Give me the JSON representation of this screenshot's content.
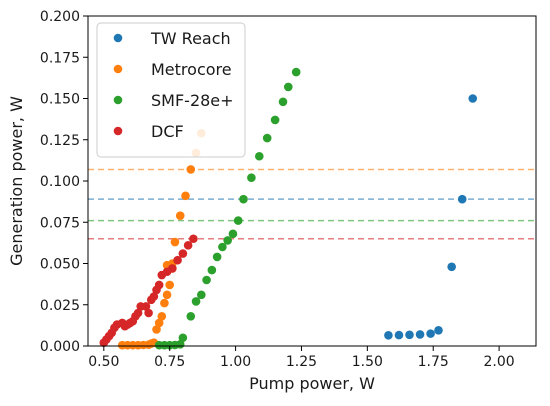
{
  "chart_data": {
    "type": "scatter",
    "xlabel": "Pump power, W",
    "ylabel": "Generation power, W",
    "xlim": [
      0.44,
      2.14
    ],
    "ylim": [
      0.0,
      0.2
    ],
    "x_ticks": [
      "0.50",
      "0.75",
      "1.00",
      "1.25",
      "1.50",
      "1.75",
      "2.00"
    ],
    "y_ticks": [
      "0.000",
      "0.025",
      "0.050",
      "0.075",
      "0.100",
      "0.125",
      "0.150",
      "0.175",
      "0.200"
    ],
    "grid": false,
    "legend_position": "top-left",
    "series": [
      {
        "name": "TW Reach",
        "color": "#1f77b4",
        "points": [
          [
            1.58,
            0.0065
          ],
          [
            1.62,
            0.0066
          ],
          [
            1.66,
            0.0068
          ],
          [
            1.7,
            0.007
          ],
          [
            1.74,
            0.0075
          ],
          [
            1.77,
            0.0095
          ],
          [
            1.82,
            0.048
          ],
          [
            1.86,
            0.089
          ],
          [
            1.9,
            0.15
          ]
        ]
      },
      {
        "name": "Metrocore",
        "color": "#ff7f0e",
        "points": [
          [
            0.57,
            0.0005
          ],
          [
            0.59,
            0.0005
          ],
          [
            0.61,
            0.0005
          ],
          [
            0.63,
            0.0005
          ],
          [
            0.65,
            0.0006
          ],
          [
            0.67,
            0.0008
          ],
          [
            0.68,
            0.0015
          ],
          [
            0.69,
            0.002
          ],
          [
            0.7,
            0.01
          ],
          [
            0.71,
            0.014
          ],
          [
            0.72,
            0.018
          ],
          [
            0.73,
            0.026
          ],
          [
            0.74,
            0.031
          ],
          [
            0.75,
            0.037
          ],
          [
            0.76,
            0.047
          ],
          [
            0.77,
            0.063
          ],
          [
            0.79,
            0.079
          ],
          [
            0.81,
            0.091
          ],
          [
            0.83,
            0.107
          ],
          [
            0.85,
            0.117
          ],
          [
            0.87,
            0.129
          ],
          [
            0.74,
            0.049
          ],
          [
            0.76,
            0.05
          ]
        ]
      },
      {
        "name": "SMF-28e+",
        "color": "#2ca02c",
        "points": [
          [
            0.71,
            0.0005
          ],
          [
            0.73,
            0.0005
          ],
          [
            0.75,
            0.0005
          ],
          [
            0.77,
            0.0006
          ],
          [
            0.79,
            0.001
          ],
          [
            0.8,
            0.005
          ],
          [
            0.83,
            0.018
          ],
          [
            0.85,
            0.027
          ],
          [
            0.87,
            0.031
          ],
          [
            0.89,
            0.04
          ],
          [
            0.91,
            0.046
          ],
          [
            0.93,
            0.054
          ],
          [
            0.95,
            0.06
          ],
          [
            0.97,
            0.064
          ],
          [
            0.99,
            0.068
          ],
          [
            1.01,
            0.076
          ],
          [
            1.03,
            0.089
          ],
          [
            1.06,
            0.102
          ],
          [
            1.09,
            0.115
          ],
          [
            1.12,
            0.126
          ],
          [
            1.15,
            0.137
          ],
          [
            1.18,
            0.148
          ],
          [
            1.2,
            0.157
          ],
          [
            1.23,
            0.166
          ]
        ]
      },
      {
        "name": "DCF",
        "color": "#d62728",
        "points": [
          [
            0.5,
            0.002
          ],
          [
            0.51,
            0.004
          ],
          [
            0.52,
            0.006
          ],
          [
            0.53,
            0.008
          ],
          [
            0.54,
            0.011
          ],
          [
            0.55,
            0.013
          ],
          [
            0.57,
            0.014
          ],
          [
            0.58,
            0.012
          ],
          [
            0.59,
            0.013
          ],
          [
            0.6,
            0.014
          ],
          [
            0.61,
            0.015
          ],
          [
            0.62,
            0.018
          ],
          [
            0.63,
            0.02
          ],
          [
            0.64,
            0.024
          ],
          [
            0.66,
            0.024
          ],
          [
            0.67,
            0.02
          ],
          [
            0.68,
            0.028
          ],
          [
            0.69,
            0.03
          ],
          [
            0.7,
            0.034
          ],
          [
            0.71,
            0.037
          ],
          [
            0.72,
            0.043
          ],
          [
            0.74,
            0.045
          ],
          [
            0.76,
            0.047
          ],
          [
            0.78,
            0.052
          ],
          [
            0.8,
            0.056
          ],
          [
            0.82,
            0.061
          ],
          [
            0.84,
            0.065
          ]
        ]
      }
    ],
    "hlines": [
      {
        "y": 0.107,
        "color": "#ff7f0e"
      },
      {
        "y": 0.089,
        "color": "#1f77b4"
      },
      {
        "y": 0.076,
        "color": "#2ca02c"
      },
      {
        "y": 0.065,
        "color": "#d62728"
      }
    ]
  }
}
